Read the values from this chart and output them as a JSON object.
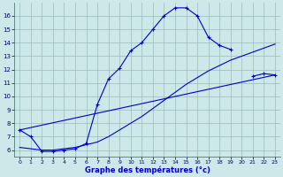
{
  "xlabel": "Graphe des températures (°c)",
  "background_color": "#cce8e8",
  "line_color": "#0000cc",
  "grid_color": "#99bbbb",
  "xlim": [
    -0.5,
    23.5
  ],
  "ylim": [
    5.5,
    17.0
  ],
  "xticks": [
    0,
    1,
    2,
    3,
    4,
    5,
    6,
    7,
    8,
    9,
    10,
    11,
    12,
    13,
    14,
    15,
    16,
    17,
    18,
    19,
    20,
    21,
    22,
    23
  ],
  "yticks": [
    6,
    7,
    8,
    9,
    10,
    11,
    12,
    13,
    14,
    15,
    16
  ],
  "series1_x": [
    0,
    1,
    2,
    3,
    4,
    5,
    6,
    7,
    8,
    9,
    10,
    11,
    12,
    13,
    14,
    15,
    16,
    17,
    18,
    19,
    20,
    21,
    22,
    23
  ],
  "series1_y": [
    7.5,
    7.0,
    5.9,
    5.9,
    6.0,
    6.1,
    6.5,
    9.4,
    11.3,
    12.1,
    13.4,
    14.0,
    15.0,
    16.0,
    16.6,
    16.6,
    16.0,
    14.4,
    13.8,
    13.5,
    null,
    11.5,
    11.7,
    11.6
  ],
  "series2_x": [
    0,
    1,
    2,
    3,
    4,
    5,
    6,
    7,
    8,
    9,
    10,
    11,
    12,
    13,
    14,
    15,
    16,
    17,
    18,
    19,
    20,
    21,
    22,
    23
  ],
  "series2_y": [
    6.2,
    6.1,
    6.0,
    6.0,
    6.1,
    6.2,
    6.4,
    6.6,
    7.0,
    7.5,
    8.0,
    8.5,
    9.1,
    9.7,
    10.3,
    10.9,
    11.4,
    11.9,
    12.3,
    12.7,
    13.0,
    13.3,
    13.6,
    13.9
  ],
  "series3_x": [
    0,
    23
  ],
  "series3_y": [
    7.5,
    11.6
  ]
}
